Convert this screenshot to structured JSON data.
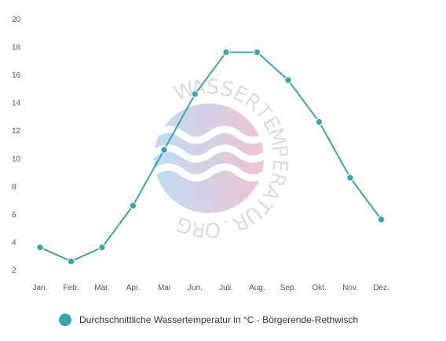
{
  "chart_data": {
    "type": "line",
    "categories": [
      "Jan.",
      "Feb.",
      "Mär.",
      "Apr.",
      "Mai",
      "Jun.",
      "Juli.",
      "Aug.",
      "Sep.",
      "Okt.",
      "Nov.",
      "Dez."
    ],
    "series": [
      {
        "name": "Durchschnittliche Wassertemperatur in °C - Börgerende-Rethwisch",
        "values": [
          3.6,
          2.6,
          3.6,
          6.6,
          10.6,
          14.6,
          17.6,
          17.6,
          15.6,
          12.6,
          8.6,
          5.6
        ]
      }
    ],
    "yticks": [
      2,
      4,
      6,
      8,
      10,
      12,
      14,
      16,
      18,
      20
    ],
    "ylim": [
      2,
      20
    ],
    "title": "",
    "xlabel": "",
    "ylabel": "",
    "grid": false,
    "legend_position": "bottom-left"
  },
  "colors": {
    "series": "#3aa5a8",
    "tick_text": "#555555",
    "legend_text": "#333333"
  },
  "watermark": {
    "text": "WASSERTEMPERATUR.ORG",
    "icon": "waves-logo-icon"
  }
}
